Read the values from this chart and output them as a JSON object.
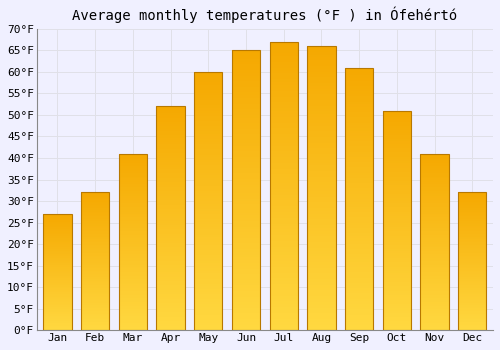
{
  "title": "Average monthly temperatures (°F ) in Ófehértó",
  "months": [
    "Jan",
    "Feb",
    "Mar",
    "Apr",
    "May",
    "Jun",
    "Jul",
    "Aug",
    "Sep",
    "Oct",
    "Nov",
    "Dec"
  ],
  "values": [
    27,
    32,
    41,
    52,
    60,
    65,
    67,
    66,
    61,
    51,
    41,
    32
  ],
  "bar_color_top": "#F5A800",
  "bar_color_bottom": "#FFD840",
  "bar_edge_color": "#B87800",
  "ylim": [
    0,
    70
  ],
  "yticks": [
    0,
    5,
    10,
    15,
    20,
    25,
    30,
    35,
    40,
    45,
    50,
    55,
    60,
    65,
    70
  ],
  "ytick_labels": [
    "0°F",
    "5°F",
    "10°F",
    "15°F",
    "20°F",
    "25°F",
    "30°F",
    "35°F",
    "40°F",
    "45°F",
    "50°F",
    "55°F",
    "60°F",
    "65°F",
    "70°F"
  ],
  "grid_color": "#e0e0e8",
  "background_color": "#f0f0ff",
  "title_fontsize": 10,
  "tick_fontsize": 8,
  "bar_width": 0.75
}
